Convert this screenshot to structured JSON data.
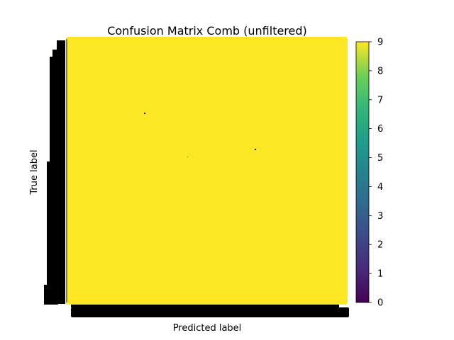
{
  "chart_data": {
    "type": "heatmap",
    "title": "Confusion Matrix Comb (unfiltered)",
    "xlabel": "Predicted label",
    "ylabel": "True label",
    "colormap": "viridis",
    "fill_color": "#fde725",
    "colorbar": {
      "min": 0,
      "max": 9,
      "ticks": [
        "0",
        "1",
        "2",
        "3",
        "4",
        "5",
        "6",
        "7",
        "8",
        "9"
      ]
    },
    "cell_value_dominant": 9,
    "note_ticks_overlapping": true
  }
}
